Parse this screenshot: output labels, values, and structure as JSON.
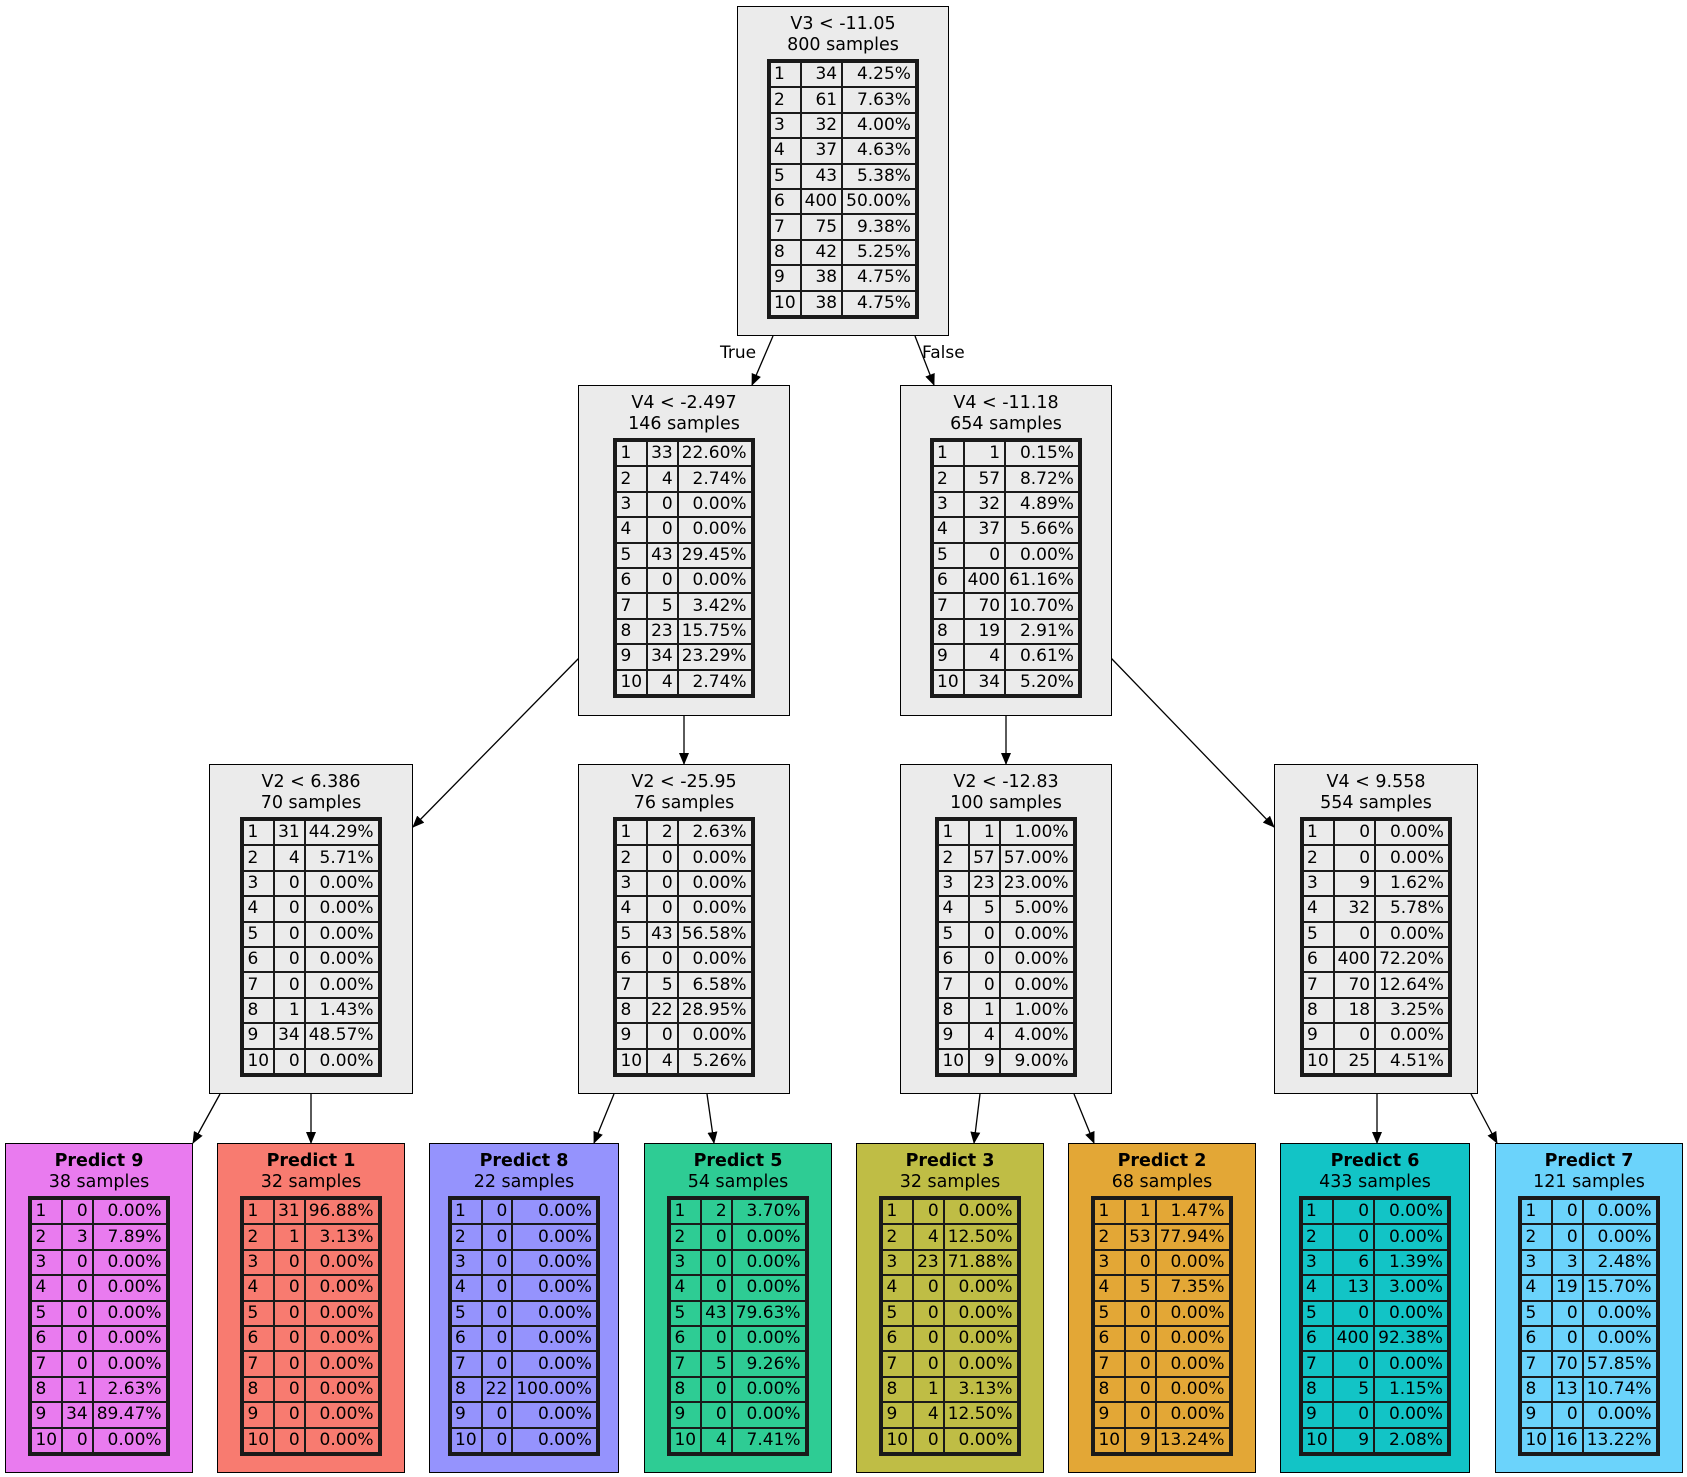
{
  "edge_labels": {
    "true_label": "True",
    "false_label": "False"
  },
  "colors": {
    "decision": "#ebebeb",
    "predict_9": "#e97bef",
    "predict_1": "#f87b70",
    "predict_8": "#9593fd",
    "predict_5": "#2ecc94",
    "predict_3": "#bfbd45",
    "predict_2": "#e3a736",
    "predict_6": "#12c4c6",
    "predict_7": "#6bd3fb"
  },
  "nodes": {
    "root": {
      "title": "V3 < -11.05",
      "samples": "800 samples",
      "rows": [
        [
          "1",
          "34",
          "4.25%"
        ],
        [
          "2",
          "61",
          "7.63%"
        ],
        [
          "3",
          "32",
          "4.00%"
        ],
        [
          "4",
          "37",
          "4.63%"
        ],
        [
          "5",
          "43",
          "5.38%"
        ],
        [
          "6",
          "400",
          "50.00%"
        ],
        [
          "7",
          "75",
          "9.38%"
        ],
        [
          "8",
          "42",
          "5.25%"
        ],
        [
          "9",
          "38",
          "4.75%"
        ],
        [
          "10",
          "38",
          "4.75%"
        ]
      ]
    },
    "n_left": {
      "title": "V4 < -2.497",
      "samples": "146 samples",
      "rows": [
        [
          "1",
          "33",
          "22.60%"
        ],
        [
          "2",
          "4",
          "2.74%"
        ],
        [
          "3",
          "0",
          "0.00%"
        ],
        [
          "4",
          "0",
          "0.00%"
        ],
        [
          "5",
          "43",
          "29.45%"
        ],
        [
          "6",
          "0",
          "0.00%"
        ],
        [
          "7",
          "5",
          "3.42%"
        ],
        [
          "8",
          "23",
          "15.75%"
        ],
        [
          "9",
          "34",
          "23.29%"
        ],
        [
          "10",
          "4",
          "2.74%"
        ]
      ]
    },
    "n_right": {
      "title": "V4 < -11.18",
      "samples": "654 samples",
      "rows": [
        [
          "1",
          "1",
          "0.15%"
        ],
        [
          "2",
          "57",
          "8.72%"
        ],
        [
          "3",
          "32",
          "4.89%"
        ],
        [
          "4",
          "37",
          "5.66%"
        ],
        [
          "5",
          "0",
          "0.00%"
        ],
        [
          "6",
          "400",
          "61.16%"
        ],
        [
          "7",
          "70",
          "10.70%"
        ],
        [
          "8",
          "19",
          "2.91%"
        ],
        [
          "9",
          "4",
          "0.61%"
        ],
        [
          "10",
          "34",
          "5.20%"
        ]
      ]
    },
    "n_ll": {
      "title": "V2 < 6.386",
      "samples": "70 samples",
      "rows": [
        [
          "1",
          "31",
          "44.29%"
        ],
        [
          "2",
          "4",
          "5.71%"
        ],
        [
          "3",
          "0",
          "0.00%"
        ],
        [
          "4",
          "0",
          "0.00%"
        ],
        [
          "5",
          "0",
          "0.00%"
        ],
        [
          "6",
          "0",
          "0.00%"
        ],
        [
          "7",
          "0",
          "0.00%"
        ],
        [
          "8",
          "1",
          "1.43%"
        ],
        [
          "9",
          "34",
          "48.57%"
        ],
        [
          "10",
          "0",
          "0.00%"
        ]
      ]
    },
    "n_lr": {
      "title": "V2 < -25.95",
      "samples": "76 samples",
      "rows": [
        [
          "1",
          "2",
          "2.63%"
        ],
        [
          "2",
          "0",
          "0.00%"
        ],
        [
          "3",
          "0",
          "0.00%"
        ],
        [
          "4",
          "0",
          "0.00%"
        ],
        [
          "5",
          "43",
          "56.58%"
        ],
        [
          "6",
          "0",
          "0.00%"
        ],
        [
          "7",
          "5",
          "6.58%"
        ],
        [
          "8",
          "22",
          "28.95%"
        ],
        [
          "9",
          "0",
          "0.00%"
        ],
        [
          "10",
          "4",
          "5.26%"
        ]
      ]
    },
    "n_rl": {
      "title": "V2 < -12.83",
      "samples": "100 samples",
      "rows": [
        [
          "1",
          "1",
          "1.00%"
        ],
        [
          "2",
          "57",
          "57.00%"
        ],
        [
          "3",
          "23",
          "23.00%"
        ],
        [
          "4",
          "5",
          "5.00%"
        ],
        [
          "5",
          "0",
          "0.00%"
        ],
        [
          "6",
          "0",
          "0.00%"
        ],
        [
          "7",
          "0",
          "0.00%"
        ],
        [
          "8",
          "1",
          "1.00%"
        ],
        [
          "9",
          "4",
          "4.00%"
        ],
        [
          "10",
          "9",
          "9.00%"
        ]
      ]
    },
    "n_rr": {
      "title": "V4 < 9.558",
      "samples": "554 samples",
      "rows": [
        [
          "1",
          "0",
          "0.00%"
        ],
        [
          "2",
          "0",
          "0.00%"
        ],
        [
          "3",
          "9",
          "1.62%"
        ],
        [
          "4",
          "32",
          "5.78%"
        ],
        [
          "5",
          "0",
          "0.00%"
        ],
        [
          "6",
          "400",
          "72.20%"
        ],
        [
          "7",
          "70",
          "12.64%"
        ],
        [
          "8",
          "18",
          "3.25%"
        ],
        [
          "9",
          "0",
          "0.00%"
        ],
        [
          "10",
          "25",
          "4.51%"
        ]
      ]
    },
    "leaf_9": {
      "title": "Predict 9",
      "samples": "38 samples",
      "rows": [
        [
          "1",
          "0",
          "0.00%"
        ],
        [
          "2",
          "3",
          "7.89%"
        ],
        [
          "3",
          "0",
          "0.00%"
        ],
        [
          "4",
          "0",
          "0.00%"
        ],
        [
          "5",
          "0",
          "0.00%"
        ],
        [
          "6",
          "0",
          "0.00%"
        ],
        [
          "7",
          "0",
          "0.00%"
        ],
        [
          "8",
          "1",
          "2.63%"
        ],
        [
          "9",
          "34",
          "89.47%"
        ],
        [
          "10",
          "0",
          "0.00%"
        ]
      ]
    },
    "leaf_1": {
      "title": "Predict 1",
      "samples": "32 samples",
      "rows": [
        [
          "1",
          "31",
          "96.88%"
        ],
        [
          "2",
          "1",
          "3.13%"
        ],
        [
          "3",
          "0",
          "0.00%"
        ],
        [
          "4",
          "0",
          "0.00%"
        ],
        [
          "5",
          "0",
          "0.00%"
        ],
        [
          "6",
          "0",
          "0.00%"
        ],
        [
          "7",
          "0",
          "0.00%"
        ],
        [
          "8",
          "0",
          "0.00%"
        ],
        [
          "9",
          "0",
          "0.00%"
        ],
        [
          "10",
          "0",
          "0.00%"
        ]
      ]
    },
    "leaf_8": {
      "title": "Predict 8",
      "samples": "22 samples",
      "rows": [
        [
          "1",
          "0",
          "0.00%"
        ],
        [
          "2",
          "0",
          "0.00%"
        ],
        [
          "3",
          "0",
          "0.00%"
        ],
        [
          "4",
          "0",
          "0.00%"
        ],
        [
          "5",
          "0",
          "0.00%"
        ],
        [
          "6",
          "0",
          "0.00%"
        ],
        [
          "7",
          "0",
          "0.00%"
        ],
        [
          "8",
          "22",
          "100.00%"
        ],
        [
          "9",
          "0",
          "0.00%"
        ],
        [
          "10",
          "0",
          "0.00%"
        ]
      ]
    },
    "leaf_5": {
      "title": "Predict 5",
      "samples": "54 samples",
      "rows": [
        [
          "1",
          "2",
          "3.70%"
        ],
        [
          "2",
          "0",
          "0.00%"
        ],
        [
          "3",
          "0",
          "0.00%"
        ],
        [
          "4",
          "0",
          "0.00%"
        ],
        [
          "5",
          "43",
          "79.63%"
        ],
        [
          "6",
          "0",
          "0.00%"
        ],
        [
          "7",
          "5",
          "9.26%"
        ],
        [
          "8",
          "0",
          "0.00%"
        ],
        [
          "9",
          "0",
          "0.00%"
        ],
        [
          "10",
          "4",
          "7.41%"
        ]
      ]
    },
    "leaf_3": {
      "title": "Predict 3",
      "samples": "32 samples",
      "rows": [
        [
          "1",
          "0",
          "0.00%"
        ],
        [
          "2",
          "4",
          "12.50%"
        ],
        [
          "3",
          "23",
          "71.88%"
        ],
        [
          "4",
          "0",
          "0.00%"
        ],
        [
          "5",
          "0",
          "0.00%"
        ],
        [
          "6",
          "0",
          "0.00%"
        ],
        [
          "7",
          "0",
          "0.00%"
        ],
        [
          "8",
          "1",
          "3.13%"
        ],
        [
          "9",
          "4",
          "12.50%"
        ],
        [
          "10",
          "0",
          "0.00%"
        ]
      ]
    },
    "leaf_2": {
      "title": "Predict 2",
      "samples": "68 samples",
      "rows": [
        [
          "1",
          "1",
          "1.47%"
        ],
        [
          "2",
          "53",
          "77.94%"
        ],
        [
          "3",
          "0",
          "0.00%"
        ],
        [
          "4",
          "5",
          "7.35%"
        ],
        [
          "5",
          "0",
          "0.00%"
        ],
        [
          "6",
          "0",
          "0.00%"
        ],
        [
          "7",
          "0",
          "0.00%"
        ],
        [
          "8",
          "0",
          "0.00%"
        ],
        [
          "9",
          "0",
          "0.00%"
        ],
        [
          "10",
          "9",
          "13.24%"
        ]
      ]
    },
    "leaf_6": {
      "title": "Predict 6",
      "samples": "433 samples",
      "rows": [
        [
          "1",
          "0",
          "0.00%"
        ],
        [
          "2",
          "0",
          "0.00%"
        ],
        [
          "3",
          "6",
          "1.39%"
        ],
        [
          "4",
          "13",
          "3.00%"
        ],
        [
          "5",
          "0",
          "0.00%"
        ],
        [
          "6",
          "400",
          "92.38%"
        ],
        [
          "7",
          "0",
          "0.00%"
        ],
        [
          "8",
          "5",
          "1.15%"
        ],
        [
          "9",
          "0",
          "0.00%"
        ],
        [
          "10",
          "9",
          "2.08%"
        ]
      ]
    },
    "leaf_7": {
      "title": "Predict 7",
      "samples": "121 samples",
      "rows": [
        [
          "1",
          "0",
          "0.00%"
        ],
        [
          "2",
          "0",
          "0.00%"
        ],
        [
          "3",
          "3",
          "2.48%"
        ],
        [
          "4",
          "19",
          "15.70%"
        ],
        [
          "5",
          "0",
          "0.00%"
        ],
        [
          "6",
          "0",
          "0.00%"
        ],
        [
          "7",
          "70",
          "57.85%"
        ],
        [
          "8",
          "13",
          "10.74%"
        ],
        [
          "9",
          "0",
          "0.00%"
        ],
        [
          "10",
          "16",
          "13.22%"
        ]
      ]
    }
  }
}
